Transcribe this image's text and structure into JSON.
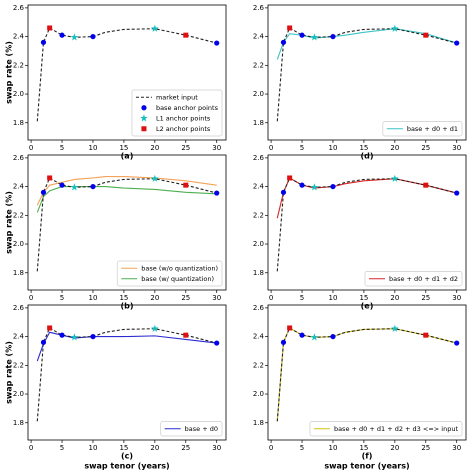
{
  "chart_data": [
    {
      "type": "line",
      "label": "(a)",
      "ylabel": "swap rate (%)",
      "xlim": [
        -0.5,
        31.5
      ],
      "ylim": [
        1.68,
        2.62
      ],
      "xticks": [
        0,
        5,
        10,
        15,
        20,
        25,
        30
      ],
      "yticks": [
        1.8,
        {
          "value": 2,
          "label": "2.0"
        },
        2.2,
        2.4,
        2.6
      ],
      "legend": "lower right",
      "series": [
        {
          "name": "market input",
          "color": "#222222",
          "style": "dashed",
          "x": [
            1,
            2,
            3,
            5,
            7,
            10,
            12,
            15,
            20,
            25,
            30
          ],
          "values": [
            1.81,
            2.36,
            2.46,
            2.41,
            2.395,
            2.4,
            2.43,
            2.45,
            2.455,
            2.41,
            2.355
          ]
        },
        {
          "name": "base anchor points",
          "color": "#0000ee",
          "marker": "o",
          "x": [
            2,
            5,
            10,
            30
          ],
          "values": [
            2.36,
            2.41,
            2.4,
            2.355
          ]
        },
        {
          "name": "L1 anchor points",
          "color": "#17bfbf",
          "marker": "*",
          "x": [
            7,
            20
          ],
          "values": [
            2.395,
            2.455
          ]
        },
        {
          "name": "L2 anchor points",
          "color": "#dd1111",
          "marker": "s",
          "x": [
            3,
            25
          ],
          "values": [
            2.46,
            2.41
          ]
        }
      ]
    },
    {
      "type": "line",
      "label": "(b)",
      "ylabel": "swap rate (%)",
      "xlim": [
        -0.5,
        31.5
      ],
      "ylim": [
        1.68,
        2.62
      ],
      "xticks": [
        0,
        5,
        10,
        15,
        20,
        25,
        30
      ],
      "yticks": [
        1.8,
        {
          "value": 2,
          "label": "2.0"
        },
        2.2,
        2.4,
        2.6
      ],
      "legend": "lower right",
      "series": [
        {
          "name": "base (w/o quantization)",
          "color": "#f4a259",
          "style": "solid",
          "x": [
            1,
            2,
            3,
            5,
            7,
            10,
            12,
            15,
            20,
            25,
            30
          ],
          "values": [
            2.27,
            2.36,
            2.41,
            2.43,
            2.45,
            2.46,
            2.47,
            2.47,
            2.46,
            2.44,
            2.41
          ]
        },
        {
          "name": "base (w/ quantization)",
          "color": "#4caf50",
          "style": "solid",
          "x": [
            1,
            2,
            3,
            5,
            7,
            10,
            12,
            15,
            20,
            25,
            30
          ],
          "values": [
            2.22,
            2.33,
            2.37,
            2.4,
            2.4,
            2.4,
            2.4,
            2.39,
            2.38,
            2.36,
            2.35
          ]
        },
        {
          "color": "#222222",
          "style": "dashed",
          "x": [
            1,
            2,
            3,
            5,
            7,
            10,
            12,
            15,
            20,
            25,
            30
          ],
          "values": [
            1.81,
            2.36,
            2.46,
            2.41,
            2.395,
            2.4,
            2.43,
            2.45,
            2.455,
            2.41,
            2.355
          ]
        },
        {
          "color": "#0000ee",
          "marker": "o",
          "x": [
            2,
            5,
            10,
            30
          ],
          "values": [
            2.36,
            2.41,
            2.4,
            2.355
          ]
        },
        {
          "color": "#17bfbf",
          "marker": "*",
          "x": [
            7,
            20
          ],
          "values": [
            2.395,
            2.455
          ]
        },
        {
          "color": "#dd1111",
          "marker": "s",
          "x": [
            3,
            25
          ],
          "values": [
            2.46,
            2.41
          ]
        }
      ]
    },
    {
      "type": "line",
      "label": "(c)",
      "ylabel": "swap rate (%)",
      "xlabel": "swap tenor (years)",
      "xlim": [
        -0.5,
        31.5
      ],
      "ylim": [
        1.68,
        2.62
      ],
      "xticks": [
        0,
        5,
        10,
        15,
        20,
        25,
        30
      ],
      "yticks": [
        1.8,
        {
          "value": 2,
          "label": "2.0"
        },
        2.2,
        2.4,
        2.6
      ],
      "legend": "lower right",
      "series": [
        {
          "name": "base + d0",
          "color": "#2b2bd0",
          "style": "solid",
          "x": [
            1,
            2,
            3,
            5,
            7,
            10,
            12,
            15,
            20,
            25,
            30
          ],
          "values": [
            2.23,
            2.35,
            2.43,
            2.41,
            2.39,
            2.4,
            2.4,
            2.4,
            2.405,
            2.38,
            2.355
          ]
        },
        {
          "color": "#222222",
          "style": "dashed",
          "x": [
            1,
            2,
            3,
            5,
            7,
            10,
            12,
            15,
            20,
            25,
            30
          ],
          "values": [
            1.81,
            2.36,
            2.46,
            2.41,
            2.395,
            2.4,
            2.43,
            2.45,
            2.455,
            2.41,
            2.355
          ]
        },
        {
          "color": "#0000ee",
          "marker": "o",
          "x": [
            2,
            5,
            10,
            30
          ],
          "values": [
            2.36,
            2.41,
            2.4,
            2.355
          ]
        },
        {
          "color": "#17bfbf",
          "marker": "*",
          "x": [
            7,
            20
          ],
          "values": [
            2.395,
            2.455
          ]
        },
        {
          "color": "#dd1111",
          "marker": "s",
          "x": [
            3,
            25
          ],
          "values": [
            2.46,
            2.41
          ]
        }
      ]
    },
    {
      "type": "line",
      "label": "(d)",
      "xlim": [
        -0.5,
        31.5
      ],
      "ylim": [
        1.68,
        2.62
      ],
      "xticks": [
        0,
        5,
        10,
        15,
        20,
        25,
        30
      ],
      "yticks": [
        1.8,
        {
          "value": 2,
          "label": "2.0"
        },
        2.2,
        2.4,
        2.6
      ],
      "legend": "lower right",
      "series": [
        {
          "name": "base + d0 + d1",
          "color": "#3cc3c3",
          "style": "solid",
          "x": [
            1,
            2,
            3,
            5,
            7,
            10,
            12,
            15,
            20,
            25,
            30
          ],
          "values": [
            2.24,
            2.36,
            2.42,
            2.41,
            2.39,
            2.4,
            2.41,
            2.43,
            2.455,
            2.42,
            2.355
          ]
        },
        {
          "color": "#222222",
          "style": "dashed",
          "x": [
            1,
            2,
            3,
            5,
            7,
            10,
            12,
            15,
            20,
            25,
            30
          ],
          "values": [
            1.81,
            2.36,
            2.46,
            2.41,
            2.395,
            2.4,
            2.43,
            2.45,
            2.455,
            2.41,
            2.355
          ]
        },
        {
          "color": "#0000ee",
          "marker": "o",
          "x": [
            2,
            5,
            10,
            30
          ],
          "values": [
            2.36,
            2.41,
            2.4,
            2.355
          ]
        },
        {
          "color": "#17bfbf",
          "marker": "*",
          "x": [
            7,
            20
          ],
          "values": [
            2.395,
            2.455
          ]
        },
        {
          "color": "#dd1111",
          "marker": "s",
          "x": [
            3,
            25
          ],
          "values": [
            2.46,
            2.41
          ]
        }
      ]
    },
    {
      "type": "line",
      "label": "(e)",
      "xlim": [
        -0.5,
        31.5
      ],
      "ylim": [
        1.68,
        2.62
      ],
      "xticks": [
        0,
        5,
        10,
        15,
        20,
        25,
        30
      ],
      "yticks": [
        1.8,
        {
          "value": 2,
          "label": "2.0"
        },
        2.2,
        2.4,
        2.6
      ],
      "legend": "lower right",
      "series": [
        {
          "name": "base + d0 + d1 + d2",
          "color": "#d62728",
          "style": "solid",
          "x": [
            1,
            2,
            3,
            5,
            7,
            10,
            12,
            15,
            20,
            25,
            30
          ],
          "values": [
            2.18,
            2.36,
            2.46,
            2.41,
            2.39,
            2.4,
            2.42,
            2.44,
            2.455,
            2.41,
            2.355
          ]
        },
        {
          "color": "#222222",
          "style": "dashed",
          "x": [
            1,
            2,
            3,
            5,
            7,
            10,
            12,
            15,
            20,
            25,
            30
          ],
          "values": [
            1.81,
            2.36,
            2.46,
            2.41,
            2.395,
            2.4,
            2.43,
            2.45,
            2.455,
            2.41,
            2.355
          ]
        },
        {
          "color": "#0000ee",
          "marker": "o",
          "x": [
            2,
            5,
            10,
            30
          ],
          "values": [
            2.36,
            2.41,
            2.4,
            2.355
          ]
        },
        {
          "color": "#17bfbf",
          "marker": "*",
          "x": [
            7,
            20
          ],
          "values": [
            2.395,
            2.455
          ]
        },
        {
          "color": "#dd1111",
          "marker": "s",
          "x": [
            3,
            25
          ],
          "values": [
            2.46,
            2.41
          ]
        }
      ]
    },
    {
      "type": "line",
      "label": "(f)",
      "xlabel": "swap tenor (years)",
      "xlim": [
        -0.5,
        31.5
      ],
      "ylim": [
        1.68,
        2.62
      ],
      "xticks": [
        0,
        5,
        10,
        15,
        20,
        25,
        30
      ],
      "yticks": [
        1.8,
        {
          "value": 2,
          "label": "2.0"
        },
        2.2,
        2.4,
        2.6
      ],
      "legend": "lower right",
      "series": [
        {
          "name": "base + d0 + d1 + d2 + d3 <=> input",
          "color": "#d4c21a",
          "style": "solid",
          "x": [
            1,
            2,
            3,
            5,
            7,
            10,
            12,
            15,
            20,
            25,
            30
          ],
          "values": [
            1.81,
            2.36,
            2.46,
            2.41,
            2.395,
            2.4,
            2.43,
            2.45,
            2.455,
            2.41,
            2.355
          ]
        },
        {
          "color": "#222222",
          "style": "dashed",
          "x": [
            1,
            2,
            3,
            5,
            7,
            10,
            12,
            15,
            20,
            25,
            30
          ],
          "values": [
            1.81,
            2.36,
            2.46,
            2.41,
            2.395,
            2.4,
            2.43,
            2.45,
            2.455,
            2.41,
            2.355
          ]
        },
        {
          "color": "#0000ee",
          "marker": "o",
          "x": [
            2,
            5,
            10,
            30
          ],
          "values": [
            2.36,
            2.41,
            2.4,
            2.355
          ]
        },
        {
          "color": "#17bfbf",
          "marker": "*",
          "x": [
            7,
            20
          ],
          "values": [
            2.395,
            2.455
          ]
        },
        {
          "color": "#dd1111",
          "marker": "s",
          "x": [
            3,
            25
          ],
          "values": [
            2.46,
            2.41
          ]
        }
      ]
    }
  ]
}
